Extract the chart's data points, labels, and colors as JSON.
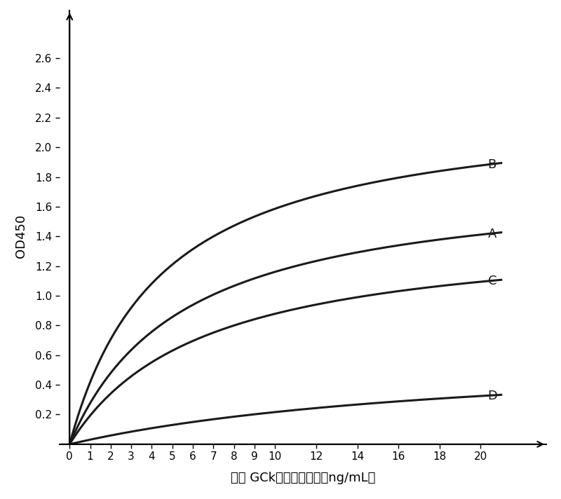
{
  "title": "",
  "xlabel": "抗人 GCk蛋白抗体浓度（ng/mL）",
  "ylabel": "OD450",
  "x_ticks": [
    0,
    1,
    2,
    3,
    4,
    5,
    6,
    7,
    8,
    9,
    10,
    12,
    14,
    16,
    18,
    20
  ],
  "xlim": [
    0,
    22
  ],
  "ylim": [
    0,
    2.8
  ],
  "y_ticks": [
    0.2,
    0.4,
    0.6,
    0.8,
    1.0,
    1.2,
    1.4,
    1.6,
    1.8,
    2.0,
    2.2,
    2.4,
    2.6
  ],
  "curves": [
    {
      "label": "B",
      "Km": 4.5,
      "Vmax": 2.3
    },
    {
      "label": "A",
      "Km": 5.5,
      "Vmax": 1.8
    },
    {
      "label": "C",
      "Km": 6.5,
      "Vmax": 1.45
    },
    {
      "label": "D",
      "Km": 20.0,
      "Vmax": 0.65
    }
  ],
  "line_color": "#1a1a1a",
  "label_fontsize": 13,
  "tick_fontsize": 11,
  "background_color": "#ffffff"
}
